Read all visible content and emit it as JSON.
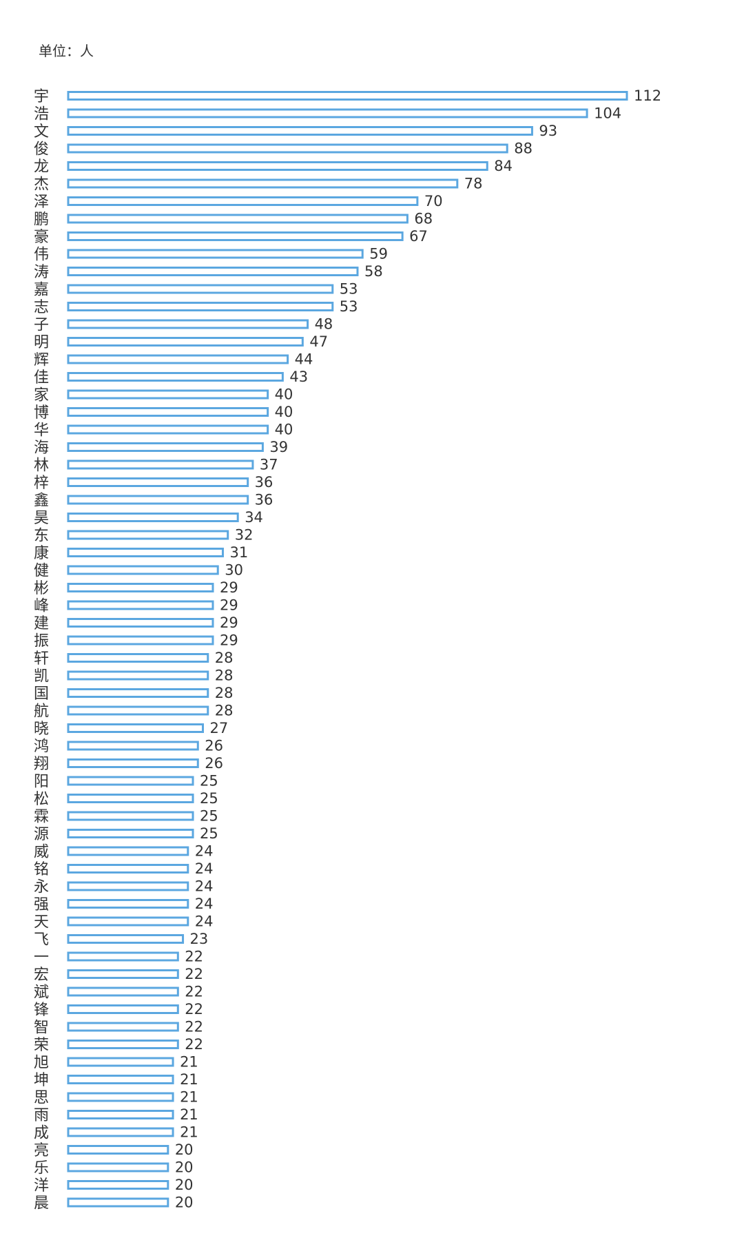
{
  "unit_label": "单位：人",
  "chart_data": {
    "type": "bar",
    "orientation": "horizontal",
    "title": "",
    "xlabel": "",
    "ylabel": "",
    "unit": "单位：人",
    "bar_color": "#5ba7e0",
    "xlim": [
      0,
      112
    ],
    "categories": [
      "宇",
      "浩",
      "文",
      "俊",
      "龙",
      "杰",
      "泽",
      "鹏",
      "豪",
      "伟",
      "涛",
      "嘉",
      "志",
      "子",
      "明",
      "辉",
      "佳",
      "家",
      "博",
      "华",
      "海",
      "林",
      "梓",
      "鑫",
      "昊",
      "东",
      "康",
      "健",
      "彬",
      "峰",
      "建",
      "振",
      "轩",
      "凯",
      "国",
      "航",
      "晓",
      "鸿",
      "翔",
      "阳",
      "松",
      "霖",
      "源",
      "威",
      "铭",
      "永",
      "强",
      "天",
      "飞",
      "一",
      "宏",
      "斌",
      "锋",
      "智",
      "荣",
      "旭",
      "坤",
      "思",
      "雨",
      "成",
      "亮",
      "乐",
      "洋",
      "晨"
    ],
    "values": [
      112,
      104,
      93,
      88,
      84,
      78,
      70,
      68,
      67,
      59,
      58,
      53,
      53,
      48,
      47,
      44,
      43,
      40,
      40,
      40,
      39,
      37,
      36,
      36,
      34,
      32,
      31,
      30,
      29,
      29,
      29,
      29,
      28,
      28,
      28,
      28,
      27,
      26,
      26,
      25,
      25,
      25,
      25,
      24,
      24,
      24,
      24,
      24,
      23,
      22,
      22,
      22,
      22,
      22,
      22,
      21,
      21,
      21,
      21,
      21,
      20,
      20,
      20,
      20
    ]
  }
}
